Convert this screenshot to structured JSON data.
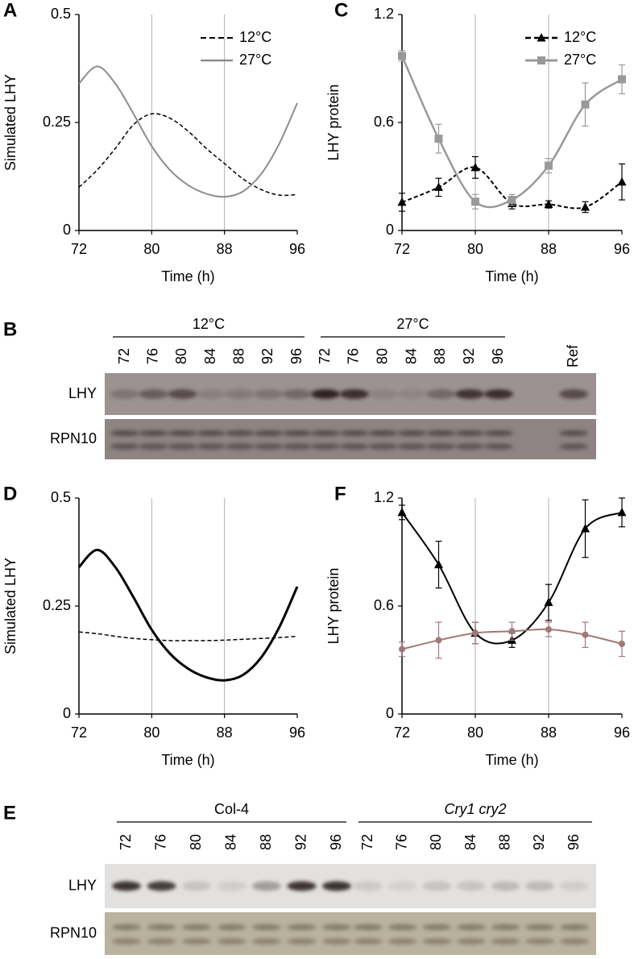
{
  "chart_data": [
    {
      "type": "line",
      "label": "A",
      "ylabel": "Simulated LHY",
      "xlabel": "Time (h)",
      "x": [
        72,
        74,
        76,
        78,
        80,
        82,
        84,
        86,
        88,
        90,
        92,
        94,
        96
      ],
      "xlim": [
        72,
        96
      ],
      "xticks": [
        72,
        80,
        88,
        96
      ],
      "ylim": [
        0,
        0.5
      ],
      "yticks": [
        0,
        0.25,
        0.5
      ],
      "grid": "x",
      "series": [
        {
          "name": "12°C",
          "color": "#000000",
          "dashed": true,
          "width": 1.5,
          "values": [
            0.1,
            0.14,
            0.19,
            0.245,
            0.27,
            0.26,
            0.23,
            0.19,
            0.155,
            0.12,
            0.095,
            0.082,
            0.083
          ]
        },
        {
          "name": "27°C",
          "color": "#8c8c8c",
          "dashed": false,
          "width": 2,
          "values": [
            0.34,
            0.38,
            0.34,
            0.27,
            0.195,
            0.14,
            0.105,
            0.085,
            0.078,
            0.09,
            0.13,
            0.2,
            0.295
          ]
        }
      ]
    },
    {
      "type": "line",
      "label": "C",
      "ylabel": "LHY protein",
      "xlabel": "Time (h)",
      "x": [
        72,
        76,
        80,
        84,
        88,
        92,
        96
      ],
      "xlim": [
        72,
        96
      ],
      "xticks": [
        72,
        80,
        88,
        96
      ],
      "ylim": [
        0,
        1.2
      ],
      "yticks": [
        0,
        0.6,
        1.2
      ],
      "grid": "x",
      "series": [
        {
          "name": "12°C",
          "color": "#000000",
          "dashed": true,
          "width": 2,
          "marker": "triangle",
          "values": [
            0.157,
            0.24,
            0.35,
            0.15,
            0.145,
            0.13,
            0.27
          ],
          "errors": [
            0.05,
            0.05,
            0.06,
            0.03,
            0.02,
            0.03,
            0.1
          ]
        },
        {
          "name": "27°C",
          "color": "#999999",
          "dashed": false,
          "width": 2.5,
          "marker": "square",
          "values": [
            0.97,
            0.51,
            0.16,
            0.17,
            0.36,
            0.7,
            0.84
          ],
          "errors": [
            0.03,
            0.08,
            0.04,
            0.03,
            0.04,
            0.12,
            0.08
          ]
        }
      ]
    },
    {
      "type": "line",
      "label": "D",
      "ylabel": "Simulated LHY",
      "xlabel": "Time (h)",
      "x": [
        72,
        74,
        76,
        78,
        80,
        82,
        84,
        86,
        88,
        90,
        92,
        94,
        96
      ],
      "xlim": [
        72,
        96
      ],
      "xticks": [
        72,
        80,
        88,
        96
      ],
      "ylim": [
        0,
        0.5
      ],
      "yticks": [
        0,
        0.25,
        0.5
      ],
      "grid": "x",
      "series": [
        {
          "color": "#000000",
          "dashed": true,
          "width": 1.5,
          "values": [
            0.19,
            0.186,
            0.18,
            0.175,
            0.172,
            0.17,
            0.17,
            0.17,
            0.171,
            0.173,
            0.175,
            0.177,
            0.18
          ]
        },
        {
          "color": "#000000",
          "dashed": false,
          "width": 3,
          "values": [
            0.34,
            0.38,
            0.34,
            0.27,
            0.195,
            0.14,
            0.105,
            0.085,
            0.078,
            0.09,
            0.13,
            0.2,
            0.295
          ]
        }
      ]
    },
    {
      "type": "line",
      "label": "F",
      "ylabel": "LHY protein",
      "xlabel": "Time (h)",
      "x": [
        72,
        76,
        80,
        84,
        88,
        92,
        96
      ],
      "xlim": [
        72,
        96
      ],
      "xticks": [
        72,
        80,
        88,
        96
      ],
      "ylim": [
        0,
        1.2
      ],
      "yticks": [
        0,
        0.6,
        1.2
      ],
      "grid": "x",
      "series": [
        {
          "color": "#000000",
          "dashed": false,
          "width": 2,
          "marker": "triangle",
          "values": [
            1.12,
            0.83,
            0.45,
            0.41,
            0.62,
            1.03,
            1.12
          ],
          "errors": [
            0.04,
            0.13,
            0.06,
            0.04,
            0.1,
            0.16,
            0.08
          ]
        },
        {
          "color": "#a07878",
          "dashed": false,
          "width": 2,
          "marker": "circle",
          "values": [
            0.36,
            0.41,
            0.45,
            0.46,
            0.47,
            0.44,
            0.39
          ],
          "errors": [
            0.04,
            0.1,
            0.06,
            0.05,
            0.04,
            0.07,
            0.07
          ]
        }
      ]
    }
  ],
  "blots": [
    {
      "label": "B",
      "groups": [
        {
          "label": "12°C",
          "italic": false,
          "lanes": [
            72,
            76,
            80,
            84,
            88,
            92,
            96
          ]
        },
        {
          "label": "27°C",
          "italic": false,
          "lanes": [
            72,
            76,
            80,
            84,
            88,
            92,
            96
          ]
        }
      ],
      "extra_lane": "Ref",
      "rows": [
        "LHY",
        "RPN10"
      ]
    },
    {
      "label": "E",
      "groups": [
        {
          "label": "Col-4",
          "italic": false,
          "lanes": [
            72,
            76,
            80,
            84,
            88,
            92,
            96
          ]
        },
        {
          "label": "Cry1 cry2",
          "italic": true,
          "lanes": [
            72,
            76,
            80,
            84,
            88,
            92,
            96
          ]
        }
      ],
      "rows": [
        "LHY",
        "RPN10"
      ]
    }
  ]
}
